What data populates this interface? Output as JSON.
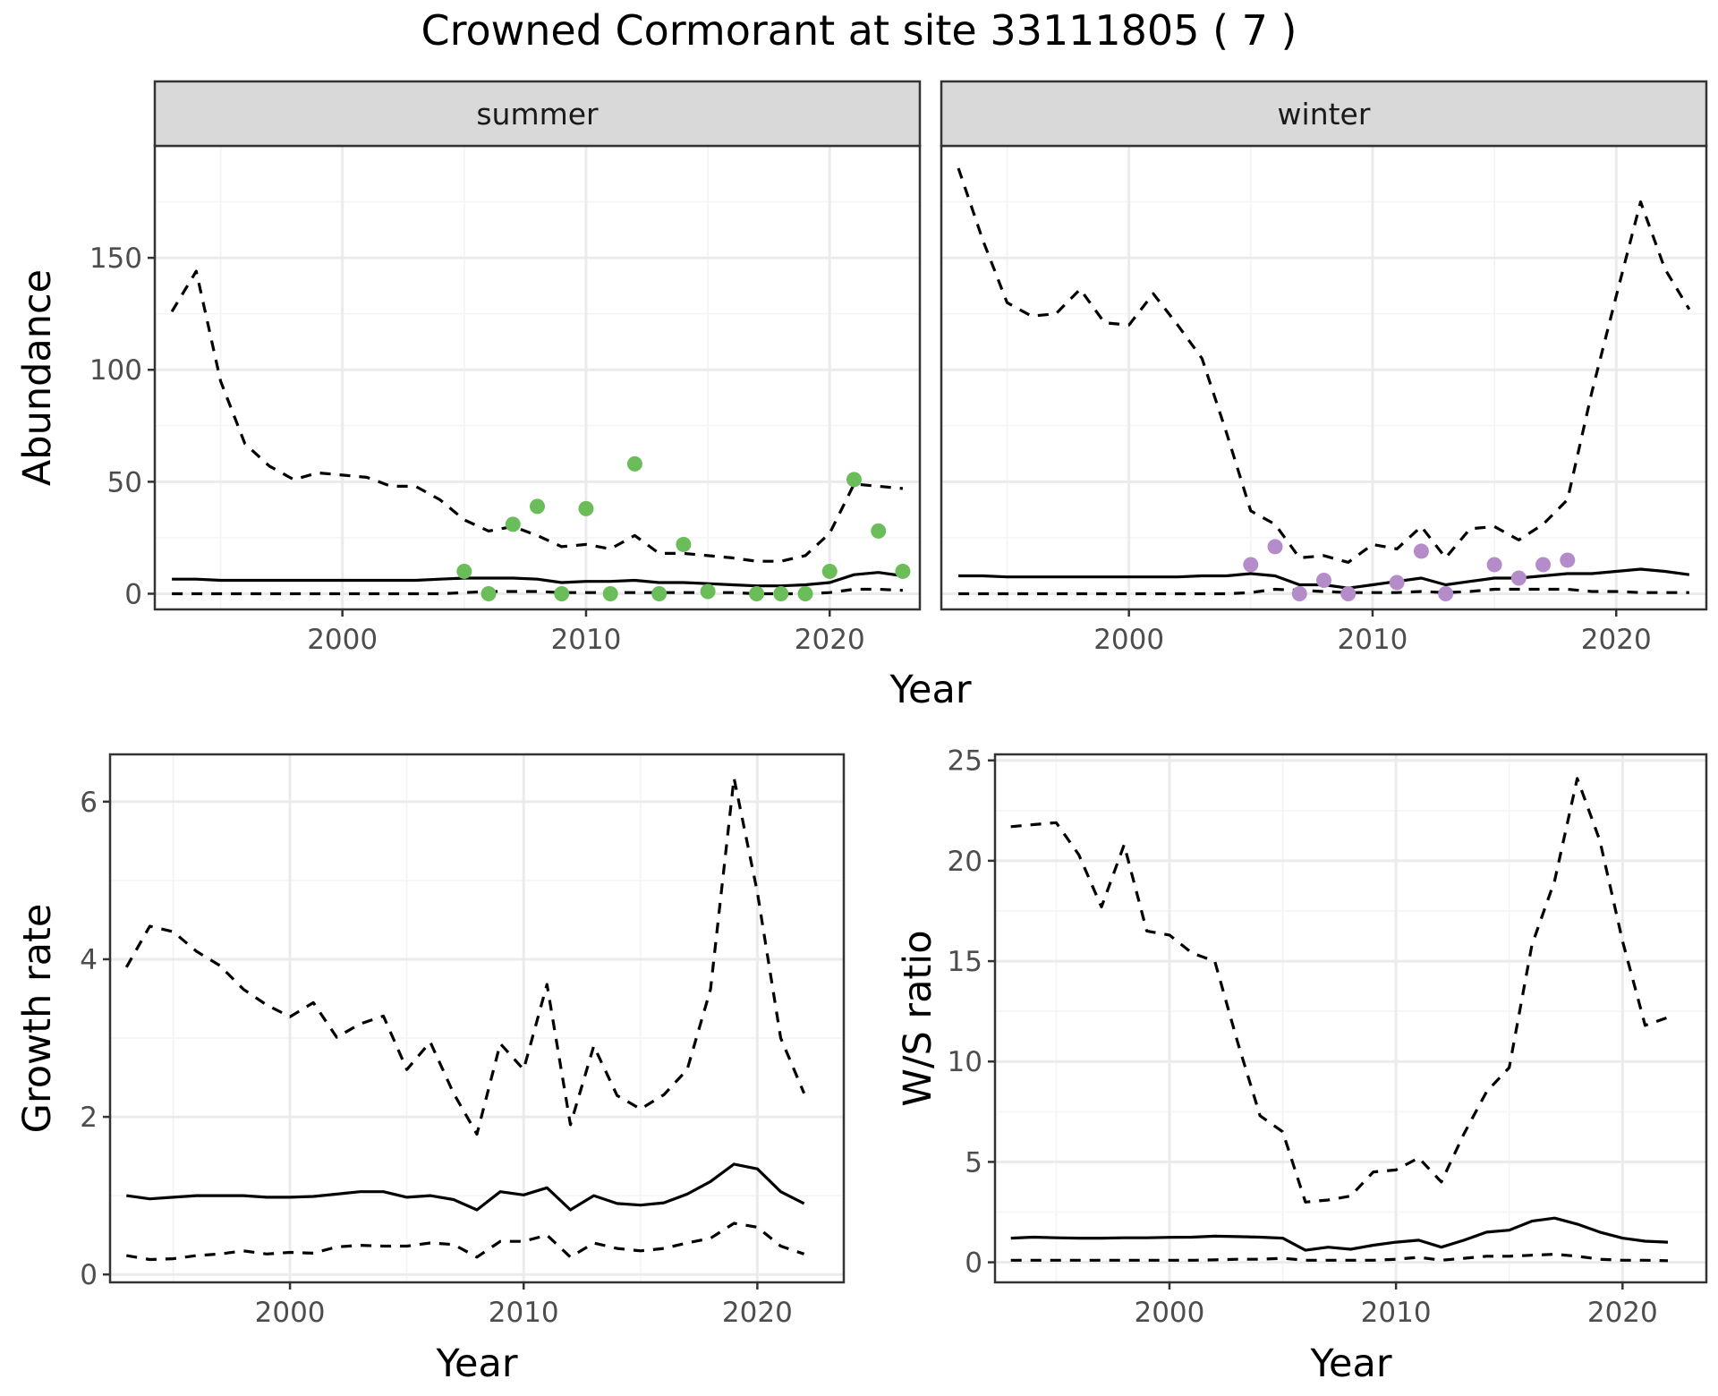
{
  "figure": {
    "title": "Crowned Cormorant at site 33111805 ( 7 )"
  },
  "colors": {
    "summer_points": "#6ABD58",
    "winter_points": "#B48CC9",
    "lines": "#000000",
    "strip_fill": "#D9D9D9",
    "grid_major": "#EBEBEB",
    "grid_minor": "#F4F4F4"
  },
  "chart_data": [
    {
      "id": "abundance",
      "type": "line",
      "facets": [
        "summer",
        "winter"
      ],
      "xlabel": "Year",
      "ylabel": "Abundance",
      "xlim": [
        1992.3,
        2023.7
      ],
      "ylim": [
        -7,
        200
      ],
      "xticks": [
        2000,
        2010,
        2020
      ],
      "yticks": [
        0,
        50,
        100,
        150
      ],
      "grid": true,
      "panels": [
        {
          "name": "summer",
          "series": [
            {
              "name": "",
              "style": "solid",
              "x": [
                1993,
                1994,
                1995,
                1996,
                1997,
                1998,
                1999,
                2000,
                2001,
                2002,
                2003,
                2004,
                2005,
                2006,
                2007,
                2008,
                2009,
                2010,
                2011,
                2012,
                2013,
                2014,
                2015,
                2016,
                2017,
                2018,
                2019,
                2020,
                2021,
                2022,
                2023
              ],
              "y": [
                6.5,
                6.5,
                6,
                6,
                6,
                6,
                6,
                6,
                6,
                6,
                6,
                6.5,
                7,
                7,
                7,
                6.5,
                5,
                5.5,
                5.5,
                6,
                5,
                5,
                4.5,
                4,
                3.5,
                3.5,
                4,
                5,
                8.5,
                9.5,
                8
              ]
            },
            {
              "name": "",
              "style": "dashed",
              "x": [
                1993,
                1994,
                1995,
                1996,
                1997,
                1998,
                1999,
                2000,
                2001,
                2002,
                2003,
                2004,
                2005,
                2006,
                2007,
                2008,
                2009,
                2010,
                2011,
                2012,
                2013,
                2014,
                2015,
                2016,
                2017,
                2018,
                2019,
                2020,
                2021,
                2022,
                2023
              ],
              "y": [
                126,
                144,
                95,
                67,
                57,
                51,
                54,
                53,
                52,
                48,
                48,
                42,
                33,
                28,
                30,
                26,
                21,
                22,
                20,
                26,
                18,
                18,
                17,
                16,
                14.5,
                14.5,
                17,
                27,
                49,
                48,
                47
              ]
            },
            {
              "name": "",
              "style": "dashed",
              "x": [
                1993,
                1994,
                1995,
                1996,
                1997,
                1998,
                1999,
                2000,
                2001,
                2002,
                2003,
                2004,
                2005,
                2006,
                2007,
                2008,
                2009,
                2010,
                2011,
                2012,
                2013,
                2014,
                2015,
                2016,
                2017,
                2018,
                2019,
                2020,
                2021,
                2022,
                2023
              ],
              "y": [
                0,
                0,
                0,
                0,
                0,
                0,
                0,
                0,
                0,
                0,
                0,
                0,
                0.5,
                1,
                1,
                1,
                0.5,
                0.5,
                0.5,
                0.5,
                0.5,
                0.5,
                0.5,
                0.5,
                0,
                0,
                0,
                0.5,
                2,
                2,
                1.5
              ]
            },
            {
              "name": "",
              "style": "points",
              "x": [
                2005,
                2006,
                2007,
                2008,
                2009,
                2010,
                2011,
                2012,
                2013,
                2014,
                2015,
                2017,
                2018,
                2019,
                2020,
                2021,
                2022,
                2023
              ],
              "y": [
                10,
                0,
                31,
                39,
                0,
                38,
                0,
                58,
                0,
                22,
                1,
                0,
                0,
                0,
                10,
                51,
                28,
                10
              ]
            }
          ]
        },
        {
          "name": "winter",
          "series": [
            {
              "name": "",
              "style": "solid",
              "x": [
                1993,
                1994,
                1995,
                1996,
                1997,
                1998,
                1999,
                2000,
                2001,
                2002,
                2003,
                2004,
                2005,
                2006,
                2007,
                2008,
                2009,
                2010,
                2011,
                2012,
                2013,
                2014,
                2015,
                2016,
                2017,
                2018,
                2019,
                2020,
                2021,
                2022,
                2023
              ],
              "y": [
                8,
                8,
                7.5,
                7.5,
                7.5,
                7.5,
                7.5,
                7.5,
                7.5,
                7.5,
                8,
                8,
                9,
                8,
                4,
                4,
                2.5,
                4,
                5.5,
                7,
                4,
                5.5,
                7,
                7,
                8,
                9,
                9,
                10,
                11,
                10,
                8.5
              ]
            },
            {
              "name": "",
              "style": "dashed",
              "x": [
                1993,
                1994,
                1995,
                1996,
                1997,
                1998,
                1999,
                2000,
                2001,
                2002,
                2003,
                2004,
                2005,
                2006,
                2007,
                2008,
                2009,
                2010,
                2011,
                2012,
                2013,
                2014,
                2015,
                2016,
                2017,
                2018,
                2019,
                2020,
                2021,
                2022,
                2023
              ],
              "y": [
                190,
                158,
                130,
                124,
                125,
                136,
                121,
                120,
                134,
                120,
                105,
                72,
                37,
                31,
                16,
                17,
                14,
                22,
                20,
                30,
                16,
                29,
                30,
                24,
                31,
                42,
                90,
                133,
                175,
                145,
                127
              ]
            },
            {
              "name": "",
              "style": "dashed",
              "x": [
                1993,
                1994,
                1995,
                1996,
                1997,
                1998,
                1999,
                2000,
                2001,
                2002,
                2003,
                2004,
                2005,
                2006,
                2007,
                2008,
                2009,
                2010,
                2011,
                2012,
                2013,
                2014,
                2015,
                2016,
                2017,
                2018,
                2019,
                2020,
                2021,
                2022,
                2023
              ],
              "y": [
                0,
                0,
                0,
                0,
                0,
                0,
                0,
                0,
                0,
                0,
                0,
                0,
                0.5,
                2,
                1.5,
                1,
                0.5,
                0.5,
                0.5,
                1,
                0.5,
                1,
                2,
                2,
                2,
                2,
                1,
                1,
                0.5,
                0.5,
                0.5
              ]
            },
            {
              "name": "",
              "style": "points",
              "x": [
                2005,
                2006,
                2007,
                2008,
                2009,
                2011,
                2012,
                2013,
                2015,
                2016,
                2017,
                2018
              ],
              "y": [
                13,
                21,
                0,
                6,
                0,
                5,
                19,
                0,
                13,
                7,
                13,
                15
              ]
            }
          ]
        }
      ]
    },
    {
      "id": "growth",
      "type": "line",
      "xlabel": "Year",
      "ylabel": "Growth rate",
      "xlim": [
        1992.3,
        2023.7
      ],
      "ylim": [
        -0.1,
        6.6
      ],
      "xticks": [
        2000,
        2010,
        2020
      ],
      "yticks": [
        0,
        2,
        4,
        6
      ],
      "grid": true,
      "series": [
        {
          "name": "",
          "style": "solid",
          "x": [
            1993,
            1994,
            1995,
            1996,
            1997,
            1998,
            1999,
            2000,
            2001,
            2002,
            2003,
            2004,
            2005,
            2006,
            2007,
            2008,
            2009,
            2010,
            2011,
            2012,
            2013,
            2014,
            2015,
            2016,
            2017,
            2018,
            2019,
            2020,
            2021,
            2022
          ],
          "y": [
            1,
            0.96,
            0.98,
            1,
            1,
            1,
            0.98,
            0.98,
            0.99,
            1.02,
            1.05,
            1.05,
            0.98,
            1,
            0.95,
            0.82,
            1.05,
            1.01,
            1.1,
            0.82,
            1,
            0.9,
            0.88,
            0.91,
            1.02,
            1.18,
            1.4,
            1.34,
            1.05,
            0.9
          ]
        },
        {
          "name": "",
          "style": "dashed",
          "x": [
            1993,
            1994,
            1995,
            1996,
            1997,
            1998,
            1999,
            2000,
            2001,
            2002,
            2003,
            2004,
            2005,
            2006,
            2007,
            2008,
            2009,
            2010,
            2011,
            2012,
            2013,
            2014,
            2015,
            2016,
            2017,
            2018,
            2019,
            2020,
            2021,
            2022
          ],
          "y": [
            3.9,
            4.42,
            4.35,
            4.1,
            3.92,
            3.62,
            3.42,
            3.27,
            3.45,
            3.01,
            3.18,
            3.28,
            2.6,
            2.95,
            2.3,
            1.78,
            2.93,
            2.6,
            3.68,
            1.9,
            2.9,
            2.27,
            2.1,
            2.28,
            2.6,
            3.62,
            6.3,
            4.85,
            3,
            2.3
          ]
        },
        {
          "name": "",
          "style": "dashed",
          "x": [
            1993,
            1994,
            1995,
            1996,
            1997,
            1998,
            1999,
            2000,
            2001,
            2002,
            2003,
            2004,
            2005,
            2006,
            2007,
            2008,
            2009,
            2010,
            2011,
            2012,
            2013,
            2014,
            2015,
            2016,
            2017,
            2018,
            2019,
            2020,
            2021,
            2022
          ],
          "y": [
            0.24,
            0.19,
            0.2,
            0.24,
            0.26,
            0.3,
            0.26,
            0.28,
            0.27,
            0.35,
            0.37,
            0.36,
            0.36,
            0.4,
            0.38,
            0.22,
            0.42,
            0.42,
            0.5,
            0.22,
            0.4,
            0.33,
            0.3,
            0.33,
            0.4,
            0.46,
            0.65,
            0.6,
            0.36,
            0.26
          ]
        }
      ]
    },
    {
      "id": "ratio",
      "type": "line",
      "xlabel": "Year",
      "ylabel": "W/S ratio",
      "xlim": [
        1992.3,
        2023.7
      ],
      "ylim": [
        -1,
        25.3
      ],
      "xticks": [
        2000,
        2010,
        2020
      ],
      "yticks": [
        0,
        5,
        10,
        15,
        20,
        25
      ],
      "grid": true,
      "series": [
        {
          "name": "",
          "style": "solid",
          "x": [
            1993,
            1994,
            1995,
            1996,
            1997,
            1998,
            1999,
            2000,
            2001,
            2002,
            2003,
            2004,
            2005,
            2006,
            2007,
            2008,
            2009,
            2010,
            2011,
            2012,
            2013,
            2014,
            2015,
            2016,
            2017,
            2018,
            2019,
            2020,
            2021,
            2022
          ],
          "y": [
            1.2,
            1.25,
            1.22,
            1.2,
            1.2,
            1.22,
            1.22,
            1.24,
            1.25,
            1.3,
            1.28,
            1.25,
            1.2,
            0.6,
            0.75,
            0.65,
            0.85,
            1,
            1.1,
            0.75,
            1.1,
            1.5,
            1.6,
            2.05,
            2.2,
            1.9,
            1.5,
            1.2,
            1.05,
            1
          ]
        },
        {
          "name": "",
          "style": "dashed",
          "x": [
            1993,
            1994,
            1995,
            1996,
            1997,
            1998,
            1999,
            2000,
            2001,
            2002,
            2003,
            2004,
            2005,
            2006,
            2007,
            2008,
            2009,
            2010,
            2011,
            2012,
            2013,
            2014,
            2015,
            2016,
            2017,
            2018,
            2019,
            2020,
            2021,
            2022
          ],
          "y": [
            21.7,
            21.8,
            21.9,
            20.3,
            17.7,
            20.8,
            16.5,
            16.3,
            15.4,
            15,
            11,
            7.3,
            6.5,
            3,
            3.1,
            3.3,
            4.5,
            4.6,
            5.2,
            4,
            6.4,
            8.5,
            9.7,
            15.8,
            19,
            24.1,
            21,
            16,
            11.8,
            12.2
          ]
        },
        {
          "name": "",
          "style": "dashed",
          "x": [
            1993,
            1994,
            1995,
            1996,
            1997,
            1998,
            1999,
            2000,
            2001,
            2002,
            2003,
            2004,
            2005,
            2006,
            2007,
            2008,
            2009,
            2010,
            2011,
            2012,
            2013,
            2014,
            2015,
            2016,
            2017,
            2018,
            2019,
            2020,
            2021,
            2022
          ],
          "y": [
            0.1,
            0.1,
            0.1,
            0.1,
            0.1,
            0.1,
            0.1,
            0.1,
            0.1,
            0.12,
            0.15,
            0.15,
            0.2,
            0.1,
            0.1,
            0.1,
            0.1,
            0.15,
            0.25,
            0.1,
            0.2,
            0.3,
            0.3,
            0.35,
            0.4,
            0.3,
            0.15,
            0.1,
            0.1,
            0.08
          ]
        }
      ]
    }
  ]
}
